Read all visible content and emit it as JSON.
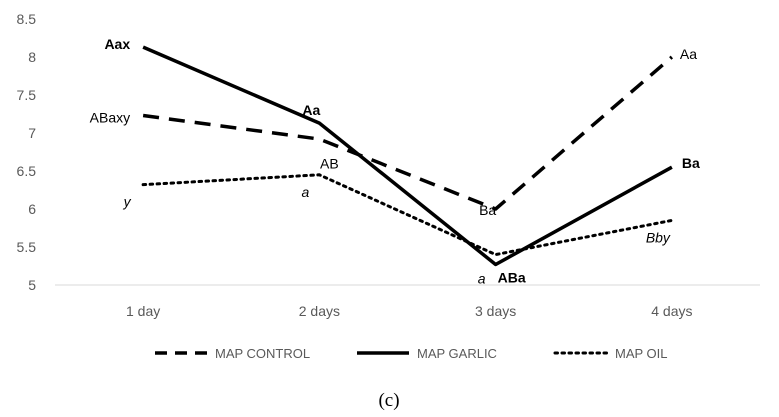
{
  "chart_data": {
    "type": "line",
    "categories": [
      "1 day",
      "2 days",
      "3 days",
      "4 days"
    ],
    "ylim": [
      5,
      8.5
    ],
    "yticks": [
      "5",
      "5.5",
      "6",
      "6.5",
      "7",
      "7.5",
      "8",
      "8.5"
    ],
    "grid": false,
    "legend_position": "bottom",
    "panel_label": "(c)",
    "series": [
      {
        "name": "MAP CONTROL",
        "values": [
          7.23,
          6.92,
          6.0,
          8.0
        ],
        "dash": "dashed",
        "labels": [
          "ABaxy",
          "",
          "Ba",
          "Aa"
        ],
        "label_style": [
          "normal",
          "normal",
          "normal",
          "normal"
        ]
      },
      {
        "name": "MAP GARLIC",
        "values": [
          8.13,
          7.13,
          5.27,
          6.55
        ],
        "dash": "solid",
        "labels": [
          "Aax",
          "Aa",
          "ABa",
          "Ba"
        ],
        "label_style": [
          "bold",
          "bold",
          "bold",
          "bold"
        ]
      },
      {
        "name": "MAP OIL",
        "values": [
          6.32,
          6.45,
          5.4,
          5.85
        ],
        "dash": "dotted",
        "labels": [
          "y",
          "a",
          "a",
          "Bby"
        ],
        "label_style": [
          "italic",
          "italic",
          "italic",
          "italic"
        ]
      }
    ],
    "annotations": [
      {
        "text": "AB",
        "category": "2 days",
        "value": 6.6,
        "style": "normal"
      }
    ]
  }
}
